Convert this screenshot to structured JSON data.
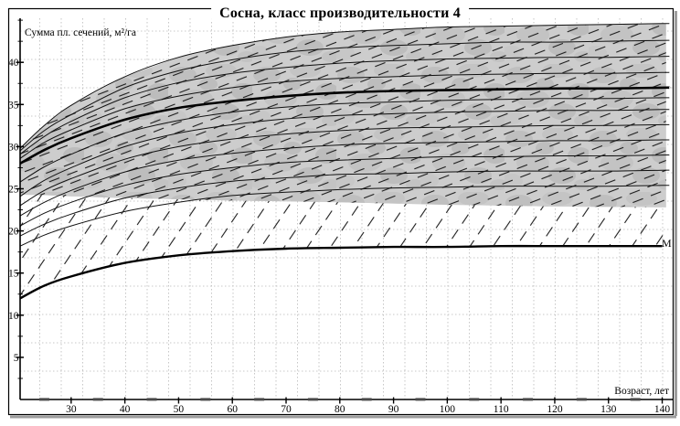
{
  "title": "Сосна, класс производительности 4",
  "axes": {
    "x_label": "Возраст, лет",
    "y_label": "Сумма пл. сечений, м²/га"
  },
  "legend": {
    "m_label": "M"
  },
  "colors": {
    "band_fill": "#cdcdcd",
    "band_blotch": "#b3b3b3",
    "curve": "#111111",
    "hatch": "#1c1c1c",
    "grid": "#b8b8b8",
    "frame": "#000000",
    "shadow": "#9e9e9e"
  },
  "chart_data": {
    "type": "line",
    "title": "Сосна, класс производительности 4",
    "xlabel": "Возраст, лет",
    "ylabel": "Сумма пл. сечений, м²/га",
    "xlim": [
      20.5,
      141.5
    ],
    "ylim": [
      0,
      46
    ],
    "x_ticks": [
      30,
      40,
      50,
      60,
      70,
      80,
      90,
      100,
      110,
      120,
      130,
      140
    ],
    "y_ticks": [
      5,
      10,
      15,
      20,
      25,
      30,
      35,
      40
    ],
    "x_minor_ticks": [
      25,
      35,
      45,
      55,
      65,
      75,
      85,
      95,
      105,
      115,
      125,
      135
    ],
    "y_minor_step": 2.5,
    "grid": "dotted",
    "legend_position": "right-of-lower-bold-curve",
    "ages": [
      20.5,
      25,
      30,
      40,
      50,
      60,
      70,
      80,
      90,
      100,
      110,
      120,
      130,
      140
    ],
    "series": [
      {
        "name": "fan-curve-1",
        "role": "fan",
        "values": [
          18.2,
          19.5,
          20.6,
          22.3,
          23.4,
          24.2,
          24.6,
          24.9,
          25.1,
          25.2,
          25.3,
          25.3,
          25.3,
          25.4
        ]
      },
      {
        "name": "fan-curve-2",
        "role": "fan",
        "values": [
          19.4,
          20.8,
          22.0,
          23.9,
          25.1,
          25.9,
          26.3,
          26.7,
          26.8,
          27.0,
          27.1,
          27.1,
          27.1,
          27.2
        ]
      },
      {
        "name": "fan-curve-3",
        "role": "fan",
        "values": [
          20.6,
          22.1,
          23.4,
          25.4,
          26.7,
          27.5,
          28.1,
          28.4,
          28.6,
          28.8,
          28.8,
          28.9,
          28.9,
          29.0
        ]
      },
      {
        "name": "fan-curve-4",
        "role": "fan",
        "values": [
          21.8,
          23.4,
          24.8,
          27.0,
          28.4,
          29.2,
          29.8,
          30.2,
          30.4,
          30.5,
          30.6,
          30.7,
          30.7,
          30.8
        ]
      },
      {
        "name": "fan-curve-5",
        "role": "fan",
        "values": [
          23.0,
          24.8,
          26.2,
          28.5,
          30.0,
          30.9,
          31.5,
          31.9,
          32.2,
          32.3,
          32.4,
          32.5,
          32.5,
          32.6
        ]
      },
      {
        "name": "fan-curve-6",
        "role": "fan",
        "values": [
          24.1,
          26.0,
          27.5,
          30.0,
          31.6,
          32.6,
          33.3,
          33.7,
          33.9,
          34.1,
          34.2,
          34.3,
          34.3,
          34.4
        ]
      },
      {
        "name": "fan-curve-7",
        "role": "fan",
        "values": [
          25.8,
          27.6,
          29.1,
          31.6,
          33.1,
          34.1,
          34.7,
          35.1,
          35.3,
          35.5,
          35.6,
          35.7,
          35.7,
          35.8
        ]
      },
      {
        "name": "upper-bold-curve",
        "role": "bold",
        "values": [
          28.0,
          29.6,
          31.0,
          33.2,
          34.6,
          35.4,
          36.0,
          36.4,
          36.6,
          36.7,
          36.8,
          36.9,
          36.9,
          37.0
        ]
      },
      {
        "name": "fan-curve-8",
        "role": "fan",
        "values": [
          28.6,
          30.5,
          32.0,
          34.5,
          36.0,
          37.0,
          37.7,
          38.1,
          38.3,
          38.5,
          38.6,
          38.7,
          38.7,
          38.8
        ]
      },
      {
        "name": "fan-curve-9",
        "role": "fan",
        "values": [
          29.1,
          31.2,
          33.0,
          35.8,
          37.6,
          38.7,
          39.4,
          39.9,
          40.2,
          40.4,
          40.5,
          40.6,
          40.6,
          40.7
        ]
      },
      {
        "name": "fan-curve-10",
        "role": "fan",
        "values": [
          29.5,
          31.9,
          33.8,
          37.0,
          39.0,
          40.3,
          41.2,
          41.7,
          42.0,
          42.2,
          42.4,
          42.4,
          42.5,
          42.6
        ]
      },
      {
        "name": "band-top-boundary",
        "role": "band-top",
        "values": [
          29.8,
          32.5,
          34.9,
          38.3,
          40.6,
          42.0,
          43.0,
          43.6,
          43.9,
          44.2,
          44.3,
          44.4,
          44.5,
          44.6
        ]
      },
      {
        "name": "band-bottom-boundary",
        "role": "band-bottom",
        "values": [
          24.3,
          24.25,
          24.1,
          23.9,
          23.75,
          23.6,
          23.5,
          23.4,
          23.25,
          23.1,
          23.0,
          22.9,
          22.85,
          22.8
        ]
      },
      {
        "name": "minimum-curve-M",
        "role": "bold-m",
        "label": "M",
        "values": [
          12.0,
          13.5,
          14.6,
          16.2,
          17.1,
          17.6,
          17.9,
          18.0,
          18.1,
          18.1,
          18.2,
          18.2,
          18.2,
          18.2
        ]
      }
    ],
    "band": {
      "top": "band-top-boundary",
      "bottom": "band-bottom-boundary",
      "texture": "mottled-gray-with-shallow-dashed-hatch"
    },
    "lower_zone": {
      "top": "band-bottom-boundary",
      "bottom": "minimum-curve-M",
      "texture": "steep-dashed-hatch"
    }
  }
}
